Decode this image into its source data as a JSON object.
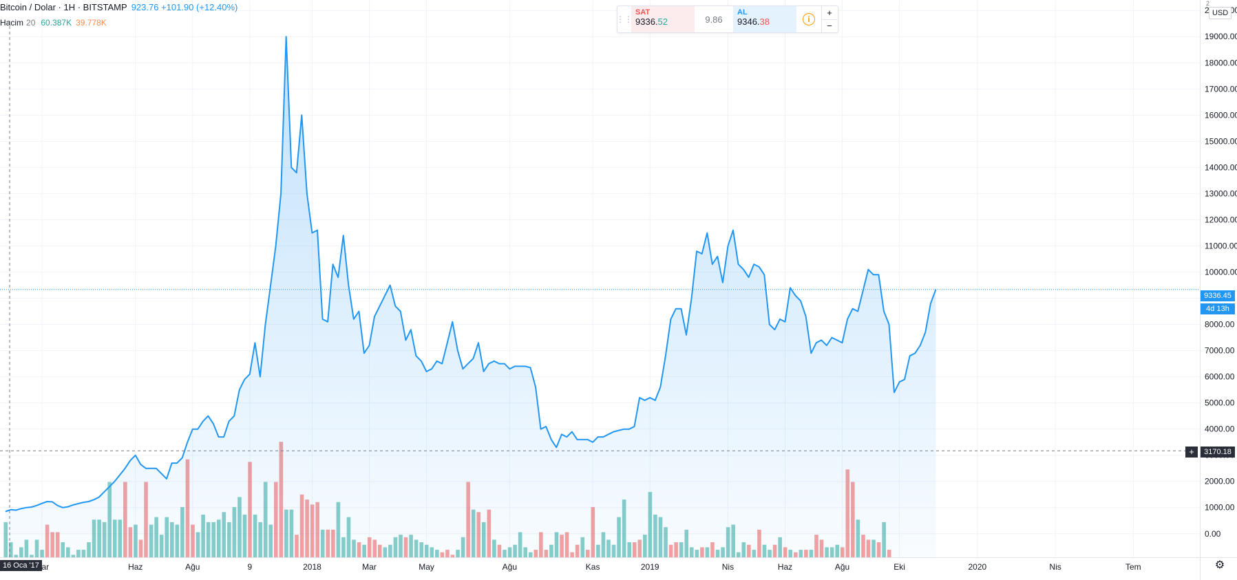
{
  "header": {
    "symbol": "Bitcoin / Dolar · 1H · BITSTAMP",
    "price_info": "923.76 +101.90 (+12.40%)"
  },
  "volume_legend": {
    "name": "Hacim",
    "length": "20",
    "value1": "60.387K",
    "value2": "39.778K"
  },
  "trade": {
    "sell_label": "SAT",
    "sell_price_main": "9336.",
    "sell_price_frac": "52",
    "spread": "9.86",
    "buy_label": "AL",
    "buy_price_main": "9346.",
    "buy_price_frac": "38",
    "plus": "+",
    "minus": "−",
    "info_glyph": "i"
  },
  "price_axis": {
    "currency": "USD",
    "scale_mark": "2",
    "current_price": "9336.45",
    "countdown": "4d 13h",
    "crosshair_price": "3170.18",
    "crosshair_plus": "+"
  },
  "time_axis": {
    "crosshair_date": "16 Oca '17"
  },
  "colors": {
    "line": "#2196f3",
    "vol_up": "#26a69a",
    "vol_down": "#ef5350",
    "grid": "#f0f3fa"
  },
  "chart_data": {
    "type": "area",
    "y_axis": {
      "ticks": [
        "0.00",
        "1000.00",
        "2000.00",
        "3000.00",
        "4000.00",
        "5000.00",
        "6000.00",
        "7000.00",
        "8000.00",
        "9000.00",
        "10000.00",
        "11000.00",
        "12000.00",
        "13000.00",
        "14000.00",
        "15000.00",
        "16000.00",
        "17000.00",
        "18000.00",
        "19000.00",
        "20000.00"
      ],
      "tick_values": [
        0,
        1000,
        2000,
        3000,
        4000,
        5000,
        6000,
        7000,
        8000,
        9000,
        10000,
        11000,
        12000,
        13000,
        14000,
        15000,
        16000,
        17000,
        18000,
        19000,
        20000
      ],
      "range": [
        -900,
        20400
      ],
      "position": "right"
    },
    "x_axis": {
      "labels": [
        "Mar",
        "Haz",
        "Ağu",
        "9",
        "2018",
        "Mar",
        "May",
        "Ağu",
        "Kas",
        "2019",
        "Nis",
        "Haz",
        "Ağu",
        "Eki",
        "2020",
        "Nis",
        "Tem"
      ],
      "label_index": [
        7,
        25,
        36,
        47,
        59,
        70,
        81,
        97,
        113,
        124,
        139,
        150,
        161,
        172,
        187,
        202,
        217
      ]
    },
    "series": [
      {
        "type": "line",
        "values": [
          850,
          920,
          900,
          960,
          1000,
          1020,
          1080,
          1160,
          1230,
          1220,
          1080,
          1000,
          1030,
          1100,
          1150,
          1200,
          1230,
          1300,
          1400,
          1600,
          1800,
          2000,
          2250,
          2500,
          2800,
          3000,
          2650,
          2500,
          2500,
          2500,
          2300,
          2100,
          2700,
          2700,
          2900,
          3500,
          4000,
          4000,
          4300,
          4500,
          4200,
          3700,
          3700,
          4300,
          4500,
          5500,
          5900,
          6100,
          7300,
          6000,
          8000,
          9500,
          11000,
          13000,
          19000,
          14000,
          13800,
          16000,
          13000,
          11500,
          11600,
          8200,
          8100,
          10300,
          9800,
          11400,
          9500,
          8200,
          8500,
          6900,
          7200,
          8300,
          8700,
          9100,
          9500,
          8700,
          8500,
          7400,
          7800,
          6800,
          6600,
          6200,
          6300,
          6600,
          6500,
          7300,
          8100,
          7000,
          6300,
          6500,
          6700,
          7300,
          6200,
          6500,
          6600,
          6500,
          6500,
          6300,
          6400,
          6400,
          6400,
          6350,
          5600,
          4000,
          4100,
          3600,
          3300,
          3800,
          3700,
          3900,
          3600,
          3600,
          3600,
          3500,
          3700,
          3700,
          3800,
          3900,
          3950,
          4000,
          4000,
          4100,
          5200,
          5100,
          5200,
          5100,
          5600,
          6800,
          8200,
          8600,
          8600,
          7600,
          9000,
          10800,
          10700,
          11500,
          10300,
          10600,
          9600,
          11000,
          11600,
          10300,
          10100,
          9800,
          10300,
          10200,
          9900,
          8000,
          7800,
          8200,
          8100,
          9400,
          9100,
          8900,
          8300,
          6900,
          7300,
          7400,
          7200,
          7500,
          7400,
          7300,
          8200,
          8600,
          8500,
          9300,
          10100,
          9900,
          9900,
          8500,
          8000,
          5400,
          5800,
          5900,
          6800,
          6900,
          7200,
          7700,
          8800,
          9336
        ]
      },
      {
        "type": "bar",
        "name": "Hacim",
        "values": [
          1400,
          600,
          100,
          400,
          700,
          100,
          700,
          300,
          1300,
          1000,
          1000,
          600,
          400,
          100,
          300,
          300,
          600,
          1500,
          1500,
          1400,
          3000,
          1500,
          1500,
          3000,
          1200,
          1300,
          700,
          3000,
          1300,
          1600,
          900,
          1600,
          1400,
          1300,
          2000,
          3900,
          1300,
          1000,
          1700,
          1400,
          1400,
          1500,
          1800,
          1400,
          2000,
          2400,
          1700,
          3800,
          1700,
          1400,
          3000,
          1300,
          3000,
          4600,
          1900,
          1900,
          900,
          2500,
          2300,
          2100,
          2200,
          1100,
          1100,
          1100,
          2200,
          800,
          1600,
          700,
          600,
          500,
          800,
          700,
          500,
          400,
          500,
          800,
          900,
          800,
          900,
          700,
          600,
          500,
          400,
          300,
          200,
          300,
          100,
          300,
          800,
          3000,
          1900,
          1800,
          1400,
          1900,
          700,
          500,
          300,
          400,
          500,
          1000,
          400,
          200,
          300,
          1000,
          300,
          500,
          1000,
          900,
          1000,
          200,
          500,
          800,
          300,
          2000,
          500,
          1000,
          700,
          500,
          1600,
          2300,
          600,
          600,
          700,
          900,
          2600,
          1700,
          1600,
          1200,
          500,
          600,
          600,
          1100,
          400,
          300,
          400,
          400,
          600,
          300,
          400,
          1200,
          1300,
          200,
          600,
          500,
          300,
          1100,
          500,
          300,
          500,
          800,
          400,
          300,
          200,
          300,
          300,
          300,
          900,
          700,
          400,
          400,
          500,
          400,
          3500,
          3000,
          1500,
          900,
          700,
          700,
          600,
          1400,
          300
        ],
        "colors_up": [
          true,
          true,
          true,
          true,
          true,
          true,
          true,
          true,
          false,
          false,
          false,
          true,
          true,
          true,
          true,
          true,
          true,
          true,
          true,
          true,
          true,
          true,
          true,
          false,
          false,
          true,
          false,
          false,
          true,
          true,
          true,
          true,
          true,
          true,
          true,
          false,
          false,
          true,
          true,
          true,
          true,
          true,
          true,
          true,
          true,
          true,
          true,
          false,
          true,
          true,
          true,
          true,
          false,
          false,
          true,
          true,
          false,
          false,
          false,
          false,
          false,
          true,
          false,
          false,
          true,
          true,
          true,
          true,
          false,
          true,
          false,
          false,
          false,
          true,
          true,
          true,
          true,
          false,
          true,
          true,
          true,
          true,
          true,
          true,
          false,
          false,
          false,
          true,
          true,
          false,
          true,
          false,
          true,
          false,
          true,
          false,
          true,
          true,
          true,
          true,
          true,
          true,
          false,
          false,
          false,
          true,
          true,
          false,
          false,
          false,
          false,
          true,
          false,
          false,
          true,
          true,
          true,
          true,
          true,
          true,
          true,
          false,
          false,
          true,
          true,
          true,
          true,
          true,
          false,
          false,
          true,
          true,
          true,
          true,
          false,
          true,
          false,
          true,
          true,
          true,
          true,
          true,
          true,
          false,
          true,
          false,
          true,
          true,
          false,
          true,
          false,
          true,
          false,
          true,
          false,
          true,
          false,
          false,
          true,
          true,
          true,
          false,
          false,
          false,
          true,
          false,
          false,
          true,
          false,
          true,
          false,
          true,
          true,
          false,
          true,
          false,
          true,
          true,
          true,
          true,
          true,
          true,
          true
        ]
      }
    ],
    "reference_lines": [
      {
        "type": "current",
        "value": 9336.45
      },
      {
        "type": "crosshair",
        "value": 3170.18
      }
    ],
    "grid": true,
    "legend": "top-left"
  }
}
